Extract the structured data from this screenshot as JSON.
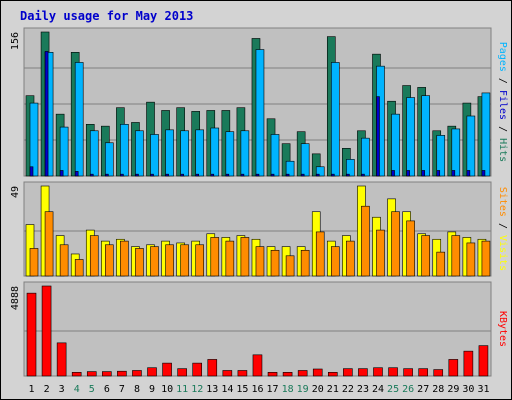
{
  "chart_data": {
    "type": "bar",
    "title": "Daily usage for May 2013",
    "categories": [
      "1",
      "2",
      "3",
      "4",
      "5",
      "6",
      "7",
      "8",
      "9",
      "10",
      "11",
      "12",
      "13",
      "14",
      "15",
      "16",
      "17",
      "18",
      "19",
      "20",
      "21",
      "22",
      "23",
      "24",
      "25",
      "26",
      "27",
      "28",
      "29",
      "30",
      "31"
    ],
    "weekend_days": [
      "4",
      "5",
      "11",
      "12",
      "18",
      "19",
      "25",
      "26"
    ],
    "colors": {
      "hits": "#1A7A5A",
      "files": "#00B4FF",
      "pages": "#0000CC",
      "visits": "#FFFF00",
      "sites": "#FF8C00",
      "kbytes": "#FF0000",
      "title": "#0000CC",
      "weekday_label": "#000000",
      "weekend_label": "#1A7A5A",
      "panel_bg": "#C0C0C0",
      "frame_bg": "#D3D3D3",
      "gridline": "#808080"
    },
    "panels": [
      {
        "id": "hits-files-pages",
        "ylabel_max": "156",
        "ymax": 156,
        "side_label": [
          {
            "text": "Pages",
            "color": "#00B4FF"
          },
          {
            "text": " / ",
            "color": "#000000"
          },
          {
            "text": "Files",
            "color": "#0000CC"
          },
          {
            "text": " / ",
            "color": "#000000"
          },
          {
            "text": "Hits",
            "color": "#1A7A5A"
          }
        ],
        "series": [
          {
            "name": "Hits",
            "color": "#1A7A5A",
            "values": [
              87,
              156,
              67,
              134,
              56,
              54,
              74,
              58,
              80,
              71,
              74,
              70,
              71,
              71,
              74,
              149,
              62,
              35,
              48,
              24,
              151,
              30,
              49,
              132,
              81,
              98,
              96,
              49,
              54,
              79,
              86
            ]
          },
          {
            "name": "Files",
            "color": "#00B4FF",
            "values": [
              79,
              134,
              53,
              123,
              49,
              36,
              56,
              49,
              45,
              50,
              49,
              50,
              52,
              48,
              49,
              137,
              45,
              16,
              35,
              10,
              123,
              18,
              41,
              119,
              67,
              85,
              87,
              44,
              51,
              65,
              90
            ]
          },
          {
            "name": "Pages",
            "color": "#0000CC",
            "values": [
              10,
              135,
              6,
              5,
              2,
              2,
              2,
              2,
              2,
              2,
              2,
              2,
              2,
              2,
              2,
              2,
              2,
              2,
              2,
              2,
              2,
              2,
              2,
              86,
              6,
              6,
              6,
              6,
              6,
              6,
              6
            ]
          }
        ]
      },
      {
        "id": "visits-sites",
        "ylabel_max": "49",
        "ymax": 49,
        "side_label": [
          {
            "text": "Sites",
            "color": "#FF8C00"
          },
          {
            "text": " / ",
            "color": "#000000"
          },
          {
            "text": "Visits",
            "color": "#FFFF00"
          }
        ],
        "series": [
          {
            "name": "Visits",
            "color": "#FFFF00",
            "values": [
              28,
              49,
              22,
              12,
              25,
              19,
              20,
              16,
              17,
              19,
              18,
              19,
              23,
              21,
              22,
              20,
              16,
              16,
              16,
              35,
              19,
              22,
              49,
              32,
              42,
              35,
              23,
              20,
              24,
              21,
              20
            ]
          },
          {
            "name": "Sites",
            "color": "#FF8C00",
            "values": [
              15,
              35,
              17,
              9,
              22,
              17,
              19,
              15,
              16,
              17,
              17,
              17,
              21,
              19,
              21,
              16,
              14,
              11,
              14,
              24,
              16,
              19,
              38,
              25,
              35,
              30,
              22,
              13,
              22,
              18,
              19
            ]
          }
        ]
      },
      {
        "id": "kbytes",
        "ylabel_max": "4888",
        "ymax": 4888,
        "side_label": [
          {
            "text": "KBytes",
            "color": "#FF0000"
          }
        ],
        "series": [
          {
            "name": "KBytes",
            "color": "#FF0000",
            "values": [
              4500,
              4888,
              1800,
              200,
              240,
              240,
              260,
              300,
              450,
              700,
              400,
              700,
              900,
              300,
              300,
              1150,
              200,
              200,
              300,
              380,
              200,
              400,
              400,
              450,
              450,
              400,
              400,
              350,
              900,
              1350,
              1650
            ]
          }
        ]
      }
    ]
  }
}
